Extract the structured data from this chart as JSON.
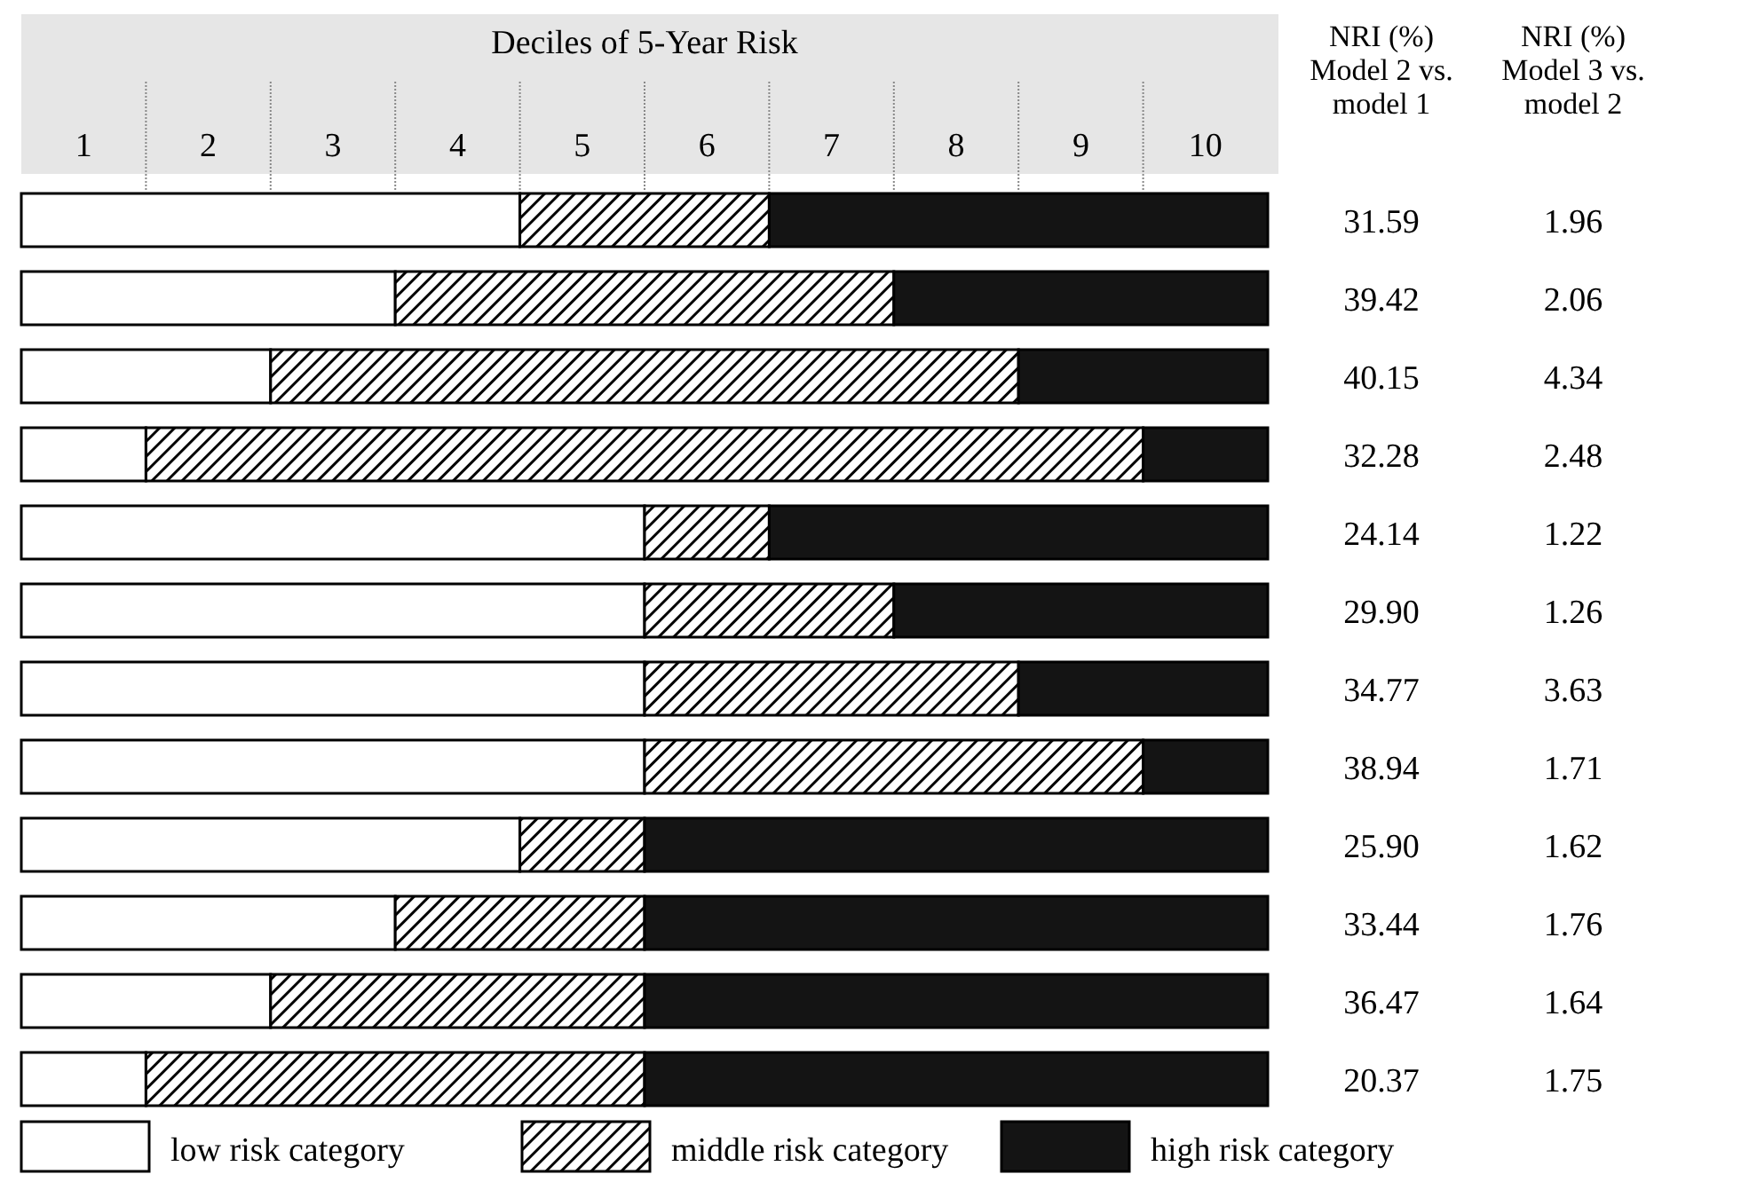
{
  "chart_data": [
    {
      "type": "bar",
      "orientation": "horizontal",
      "stacked": true,
      "title": "Deciles of 5-Year Risk",
      "categories": [
        null,
        null,
        null,
        null,
        null,
        null,
        null,
        null,
        null,
        null,
        null,
        null
      ],
      "xlim": [
        0,
        10
      ],
      "xticks": [
        {
          "value": 0.5,
          "label": "1"
        },
        {
          "value": 1.5,
          "label": "2"
        },
        {
          "value": 2.5,
          "label": "3"
        },
        {
          "value": 3.5,
          "label": "4"
        },
        {
          "value": 4.5,
          "label": "5"
        },
        {
          "value": 5.5,
          "label": "6"
        },
        {
          "value": 6.5,
          "label": "7"
        },
        {
          "value": 7.5,
          "label": "8"
        },
        {
          "value": 8.5,
          "label": "9"
        },
        {
          "value": 9.5,
          "label": "10"
        }
      ],
      "legend": "bottom",
      "series": [
        {
          "name": "low risk category",
          "color": "#ffffff",
          "values": [
            4,
            3,
            2,
            1,
            5,
            5,
            5,
            5,
            4,
            3,
            2,
            1
          ]
        },
        {
          "name": "middle risk category",
          "color": "#000000",
          "values": [
            2,
            4,
            6,
            8,
            1,
            2,
            3,
            4,
            1,
            2,
            3,
            4
          ]
        },
        {
          "name": "high risk category",
          "color": "#141414",
          "values": [
            4,
            3,
            2,
            1,
            4,
            3,
            2,
            1,
            5,
            5,
            5,
            5
          ]
        }
      ]
    },
    {
      "type": "other",
      "annotations": [
        "NRI (%) Model 2 vs. model 1",
        "31.59",
        "39.42",
        "40.15",
        "32.28",
        "24.14",
        "29.90",
        "34.77",
        "38.94",
        "25.90",
        "33.44",
        "36.47",
        "20.37"
      ]
    },
    {
      "type": "other",
      "annotations": [
        "NRI (%) Model 3 vs. model 2",
        "1.96",
        "2.06",
        "4.34",
        "2.48",
        "1.22",
        "1.26",
        "3.63",
        "1.71",
        "1.62",
        "1.76",
        "1.64",
        "1.75"
      ]
    }
  ]
}
